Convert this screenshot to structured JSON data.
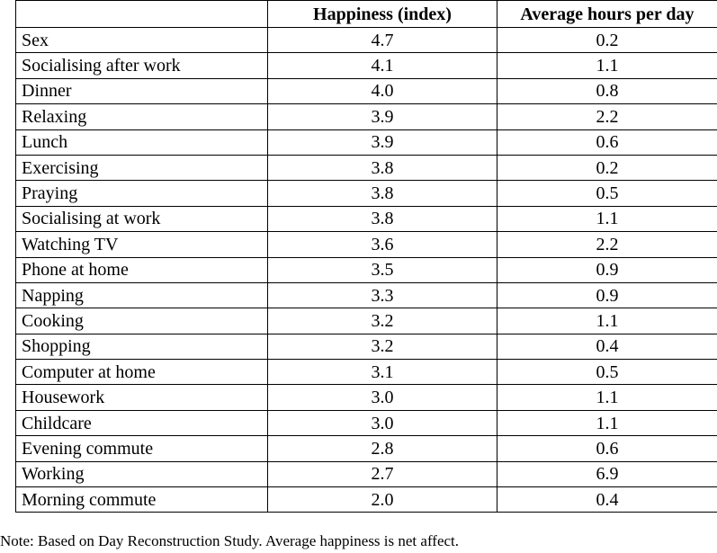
{
  "table": {
    "header": [
      "Happiness (index)",
      "Average hours per day"
    ],
    "rows": [
      [
        "Sex",
        "4.7",
        "0.2"
      ],
      [
        "Socialising after work",
        "4.1",
        "1.1"
      ],
      [
        "Dinner",
        "4.0",
        "0.8"
      ],
      [
        "Relaxing",
        "3.9",
        "2.2"
      ],
      [
        "Lunch",
        "3.9",
        "0.6"
      ],
      [
        "Exercising",
        "3.8",
        "0.2"
      ],
      [
        "Praying",
        "3.8",
        "0.5"
      ],
      [
        "Socialising at work",
        "3.8",
        "1.1"
      ],
      [
        "Watching TV",
        "3.6",
        "2.2"
      ],
      [
        "Phone at home",
        "3.5",
        "0.9"
      ],
      [
        "Napping",
        "3.3",
        "0.9"
      ],
      [
        "Cooking",
        "3.2",
        "1.1"
      ],
      [
        "Shopping",
        "3.2",
        "0.4"
      ],
      [
        "Computer at home",
        "3.1",
        "0.5"
      ],
      [
        "Housework",
        "3.0",
        "1.1"
      ],
      [
        "Childcare",
        "3.0",
        "1.1"
      ],
      [
        "Evening commute",
        "2.8",
        "0.6"
      ],
      [
        "Working",
        "2.7",
        "6.9"
      ],
      [
        "Morning commute",
        "2.0",
        "0.4"
      ]
    ]
  },
  "note": "Note: Based on Day Reconstruction Study.  Average happiness is net affect."
}
